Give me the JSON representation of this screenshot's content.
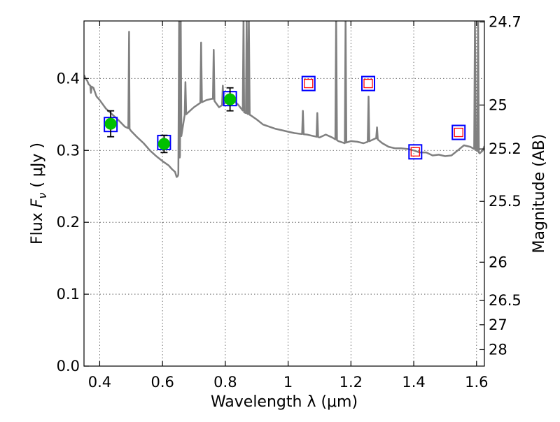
{
  "chart_data": {
    "type": "scatter",
    "title": "",
    "xlabel": "Wavelength  λ (μm)",
    "ylabel": "Flux  F_ν  ( μJy )",
    "ylabel_parts": {
      "prefix": "Flux  ",
      "symbol": "F",
      "subscript": "ν",
      "unit": "  ( μJy )"
    },
    "y2label": "Magnitude (AB)",
    "xlim": [
      0.35,
      1.625
    ],
    "ylim": [
      0.0,
      0.48
    ],
    "grid": true,
    "x_ticks": [
      0.4,
      0.6,
      0.8,
      1.0,
      1.2,
      1.4,
      1.6
    ],
    "x_tick_labels": [
      "0.4",
      "0.6",
      "0.8",
      "1",
      "1.2",
      "1.4",
      "1.6"
    ],
    "y_ticks": [
      0.0,
      0.1,
      0.2,
      0.3,
      0.4
    ],
    "y_tick_labels": [
      "0.0",
      "0.1",
      "0.2",
      "0.3",
      "0.4"
    ],
    "magnitude_ticks": [
      {
        "label": "24.7",
        "flux": 0.4786
      },
      {
        "label": "25",
        "flux": 0.3631
      },
      {
        "label": "25.2",
        "flux": 0.302
      },
      {
        "label": "25.5",
        "flux": 0.2291
      },
      {
        "label": "26",
        "flux": 0.1445
      },
      {
        "label": "26.5",
        "flux": 0.0912
      },
      {
        "label": "27",
        "flux": 0.0575
      },
      {
        "label": "28",
        "flux": 0.0229
      }
    ],
    "colors": {
      "model": "#808080",
      "observed": "#00c000",
      "model_box": "#0000ff",
      "predicted": "#ff0000",
      "errorbar": "#000000"
    },
    "series": [
      {
        "name": "model spectrum",
        "kind": "line",
        "x": [
          0.35,
          0.355,
          0.36,
          0.365,
          0.37,
          0.38,
          0.39,
          0.4,
          0.42,
          0.44,
          0.46,
          0.48,
          0.495,
          0.5,
          0.52,
          0.54,
          0.56,
          0.58,
          0.6,
          0.62,
          0.63,
          0.64,
          0.645,
          0.648,
          0.65,
          0.655,
          0.66,
          0.67,
          0.68,
          0.7,
          0.72,
          0.74,
          0.76,
          0.78,
          0.8,
          0.82,
          0.84,
          0.86,
          0.88,
          0.9,
          0.92,
          0.94,
          0.96,
          0.98,
          1.0,
          1.02,
          1.04,
          1.06,
          1.08,
          1.1,
          1.12,
          1.14,
          1.16,
          1.18,
          1.2,
          1.22,
          1.24,
          1.26,
          1.28,
          1.3,
          1.32,
          1.34,
          1.36,
          1.38,
          1.4,
          1.42,
          1.44,
          1.46,
          1.48,
          1.5,
          1.52,
          1.54,
          1.56,
          1.58,
          1.6,
          1.61,
          1.62,
          1.625
        ],
        "y": [
          0.405,
          0.4,
          0.397,
          0.392,
          0.39,
          0.387,
          0.375,
          0.37,
          0.358,
          0.35,
          0.342,
          0.333,
          0.33,
          0.327,
          0.318,
          0.31,
          0.3,
          0.292,
          0.285,
          0.279,
          0.274,
          0.27,
          0.263,
          0.264,
          0.266,
          0.29,
          0.32,
          0.348,
          0.352,
          0.36,
          0.366,
          0.37,
          0.372,
          0.36,
          0.366,
          0.372,
          0.364,
          0.353,
          0.349,
          0.343,
          0.336,
          0.333,
          0.33,
          0.328,
          0.326,
          0.324,
          0.323,
          0.322,
          0.32,
          0.318,
          0.322,
          0.318,
          0.313,
          0.31,
          0.313,
          0.312,
          0.31,
          0.313,
          0.317,
          0.31,
          0.305,
          0.303,
          0.303,
          0.302,
          0.3,
          0.297,
          0.297,
          0.293,
          0.294,
          0.292,
          0.293,
          0.3,
          0.307,
          0.305,
          0.3,
          0.296,
          0.3,
          0.306
        ]
      },
      {
        "name": "emission lines",
        "kind": "line-peaks",
        "lines": [
          {
            "x": 0.372,
            "peak": 0.38
          },
          {
            "x": 0.4935,
            "peak": 0.465
          },
          {
            "x": 0.653,
            "peak": 0.485
          },
          {
            "x": 0.658,
            "peak": 0.485
          },
          {
            "x": 0.673,
            "peak": 0.395
          },
          {
            "x": 0.723,
            "peak": 0.45
          },
          {
            "x": 0.763,
            "peak": 0.44
          },
          {
            "x": 0.792,
            "peak": 0.39
          },
          {
            "x": 0.858,
            "peak": 0.485
          },
          {
            "x": 0.868,
            "peak": 0.485
          },
          {
            "x": 0.875,
            "peak": 0.485
          },
          {
            "x": 1.047,
            "peak": 0.355
          },
          {
            "x": 1.093,
            "peak": 0.352
          },
          {
            "x": 1.153,
            "peak": 0.485
          },
          {
            "x": 1.183,
            "peak": 0.485
          },
          {
            "x": 1.256,
            "peak": 0.375
          },
          {
            "x": 1.283,
            "peak": 0.332
          },
          {
            "x": 1.595,
            "peak": 0.485
          },
          {
            "x": 1.605,
            "peak": 0.485
          }
        ]
      },
      {
        "name": "model photometry",
        "kind": "squares",
        "x": [
          0.435,
          0.605,
          0.815,
          1.065,
          1.255,
          1.405,
          1.543
        ],
        "y": [
          0.336,
          0.311,
          0.372,
          0.393,
          0.393,
          0.298,
          0.325
        ]
      },
      {
        "name": "observed photometry",
        "kind": "points",
        "x": [
          0.435,
          0.605,
          0.815
        ],
        "y": [
          0.337,
          0.309,
          0.371
        ],
        "err": [
          0.018,
          0.012,
          0.016
        ]
      },
      {
        "name": "predicted photometry",
        "kind": "open-squares",
        "x": [
          1.065,
          1.255,
          1.405,
          1.543
        ],
        "y": [
          0.393,
          0.393,
          0.298,
          0.325
        ]
      }
    ]
  }
}
